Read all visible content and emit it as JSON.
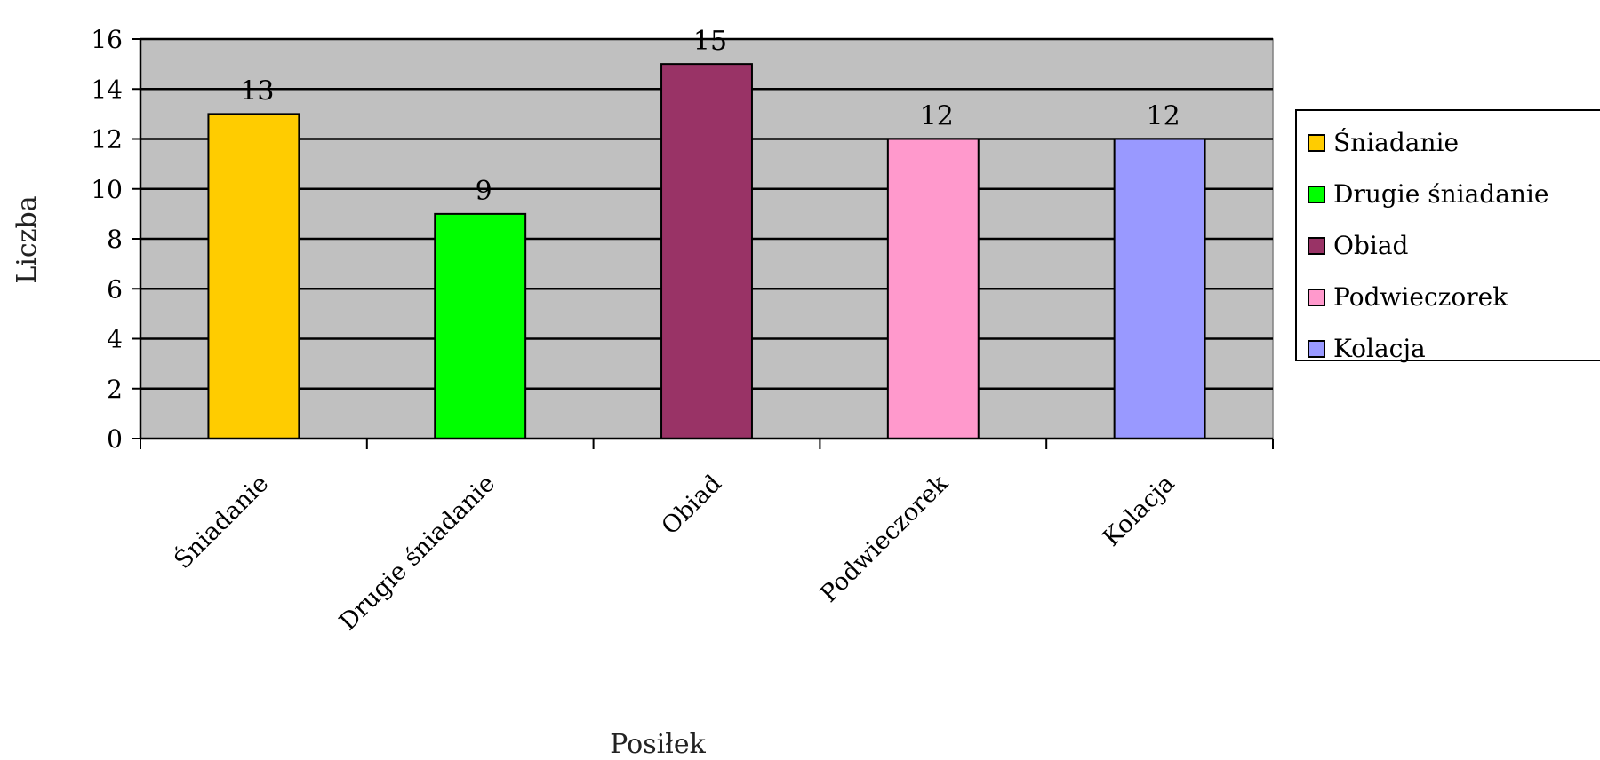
{
  "chart_data": {
    "type": "bar",
    "title": "",
    "xlabel": "Posiłek",
    "ylabel": "Liczba",
    "ylim": [
      0,
      16
    ],
    "yticks": [
      0,
      2,
      4,
      6,
      8,
      10,
      12,
      14,
      16
    ],
    "grid": true,
    "legend_position": "right",
    "plot_background": "#c0c0c0",
    "categories": [
      "Śniadanie",
      "Drugie śniadanie",
      "Obiad",
      "Podwieczorek",
      "Kolacja"
    ],
    "values": [
      13,
      9,
      15,
      12,
      12
    ],
    "value_labels": [
      "13",
      "9",
      "15",
      "12",
      "12"
    ],
    "colors": [
      "#ffcc00",
      "#00ff00",
      "#993366",
      "#ff99cc",
      "#9999ff"
    ],
    "legend": [
      "Śniadanie",
      "Drugie śniadanie",
      "Obiad",
      "Podwieczorek",
      "Kolacja"
    ]
  }
}
